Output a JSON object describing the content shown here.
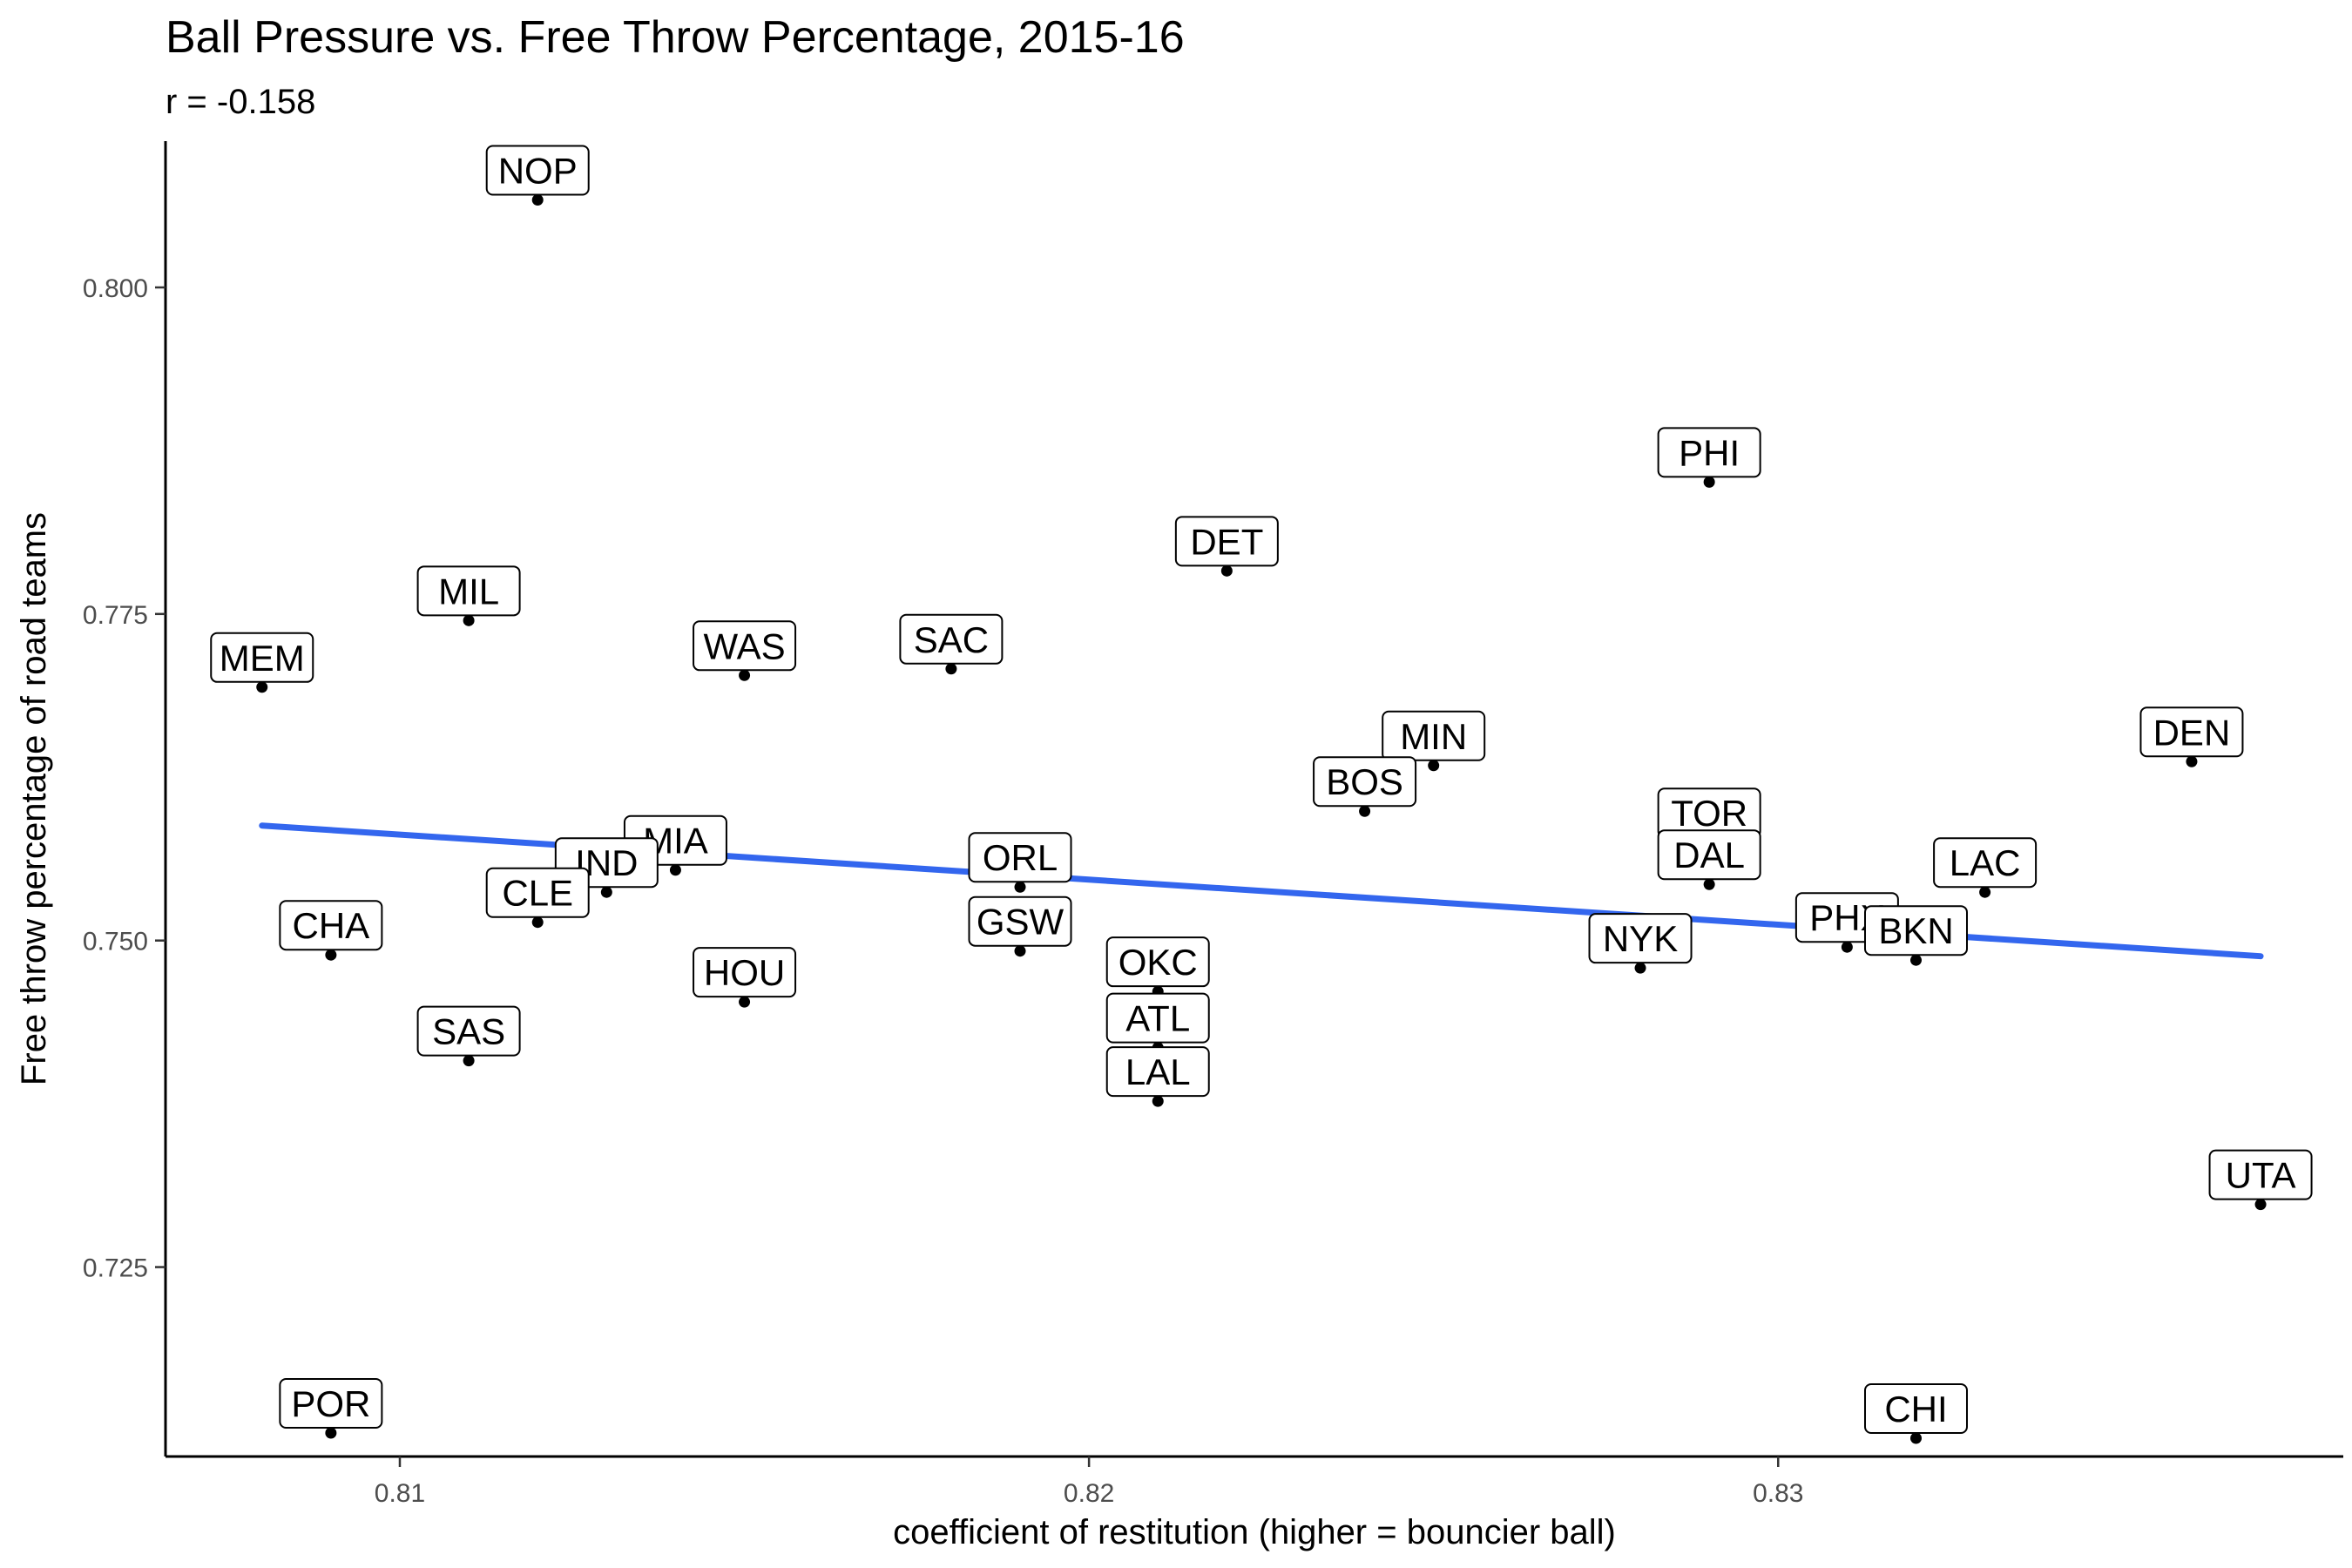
{
  "chart_data": {
    "type": "scatter",
    "title": "Ball Pressure vs. Free Throw Percentage, 2015-16",
    "subtitle": "r = -0.158",
    "xlabel": "coefficient of restitution (higher = bouncier ball)",
    "ylabel": "Free throw percentage of road teams",
    "xlim": [
      0.8066,
      0.8382
    ],
    "ylim": [
      0.7105,
      0.8112
    ],
    "x_ticks": [
      0.81,
      0.82,
      0.83
    ],
    "x_tick_labels": [
      "0.81",
      "0.82",
      "0.83"
    ],
    "y_ticks": [
      0.725,
      0.75,
      0.775,
      0.8
    ],
    "y_tick_labels": [
      "0.725",
      "0.750",
      "0.775",
      "0.800"
    ],
    "grid": false,
    "trend_line": {
      "x": [
        0.808,
        0.837
      ],
      "y": [
        0.7588,
        0.7488
      ]
    },
    "points": [
      {
        "label": "NOP",
        "x": 0.812,
        "y": 0.8067
      },
      {
        "label": "PHI",
        "x": 0.829,
        "y": 0.7851
      },
      {
        "label": "DET",
        "x": 0.822,
        "y": 0.7783
      },
      {
        "label": "MIL",
        "x": 0.811,
        "y": 0.7745
      },
      {
        "label": "SAC",
        "x": 0.818,
        "y": 0.7708
      },
      {
        "label": "WAS",
        "x": 0.815,
        "y": 0.7703
      },
      {
        "label": "MEM",
        "x": 0.808,
        "y": 0.7694
      },
      {
        "label": "DEN",
        "x": 0.836,
        "y": 0.7637
      },
      {
        "label": "MIN",
        "x": 0.825,
        "y": 0.7634
      },
      {
        "label": "BOS",
        "x": 0.824,
        "y": 0.7599
      },
      {
        "label": "TOR",
        "x": 0.829,
        "y": 0.7575
      },
      {
        "label": "MIA",
        "x": 0.814,
        "y": 0.7554
      },
      {
        "label": "IND",
        "x": 0.813,
        "y": 0.7537
      },
      {
        "label": "DAL",
        "x": 0.829,
        "y": 0.7543
      },
      {
        "label": "ORL",
        "x": 0.819,
        "y": 0.7541
      },
      {
        "label": "LAC",
        "x": 0.833,
        "y": 0.7537
      },
      {
        "label": "CLE",
        "x": 0.812,
        "y": 0.7514
      },
      {
        "label": "PHX",
        "x": 0.831,
        "y": 0.7495
      },
      {
        "label": "BKN",
        "x": 0.832,
        "y": 0.7485
      },
      {
        "label": "NYK",
        "x": 0.828,
        "y": 0.7479
      },
      {
        "label": "GSW",
        "x": 0.819,
        "y": 0.7492
      },
      {
        "label": "CHA",
        "x": 0.809,
        "y": 0.7489
      },
      {
        "label": "OKC",
        "x": 0.821,
        "y": 0.7461
      },
      {
        "label": "HOU",
        "x": 0.815,
        "y": 0.7453
      },
      {
        "label": "ATL",
        "x": 0.821,
        "y": 0.7418
      },
      {
        "label": "SAS",
        "x": 0.811,
        "y": 0.7408
      },
      {
        "label": "LAL",
        "x": 0.821,
        "y": 0.7377
      },
      {
        "label": "UTA",
        "x": 0.837,
        "y": 0.7298
      },
      {
        "label": "POR",
        "x": 0.809,
        "y": 0.7123
      },
      {
        "label": "CHI",
        "x": 0.832,
        "y": 0.7119
      }
    ]
  }
}
